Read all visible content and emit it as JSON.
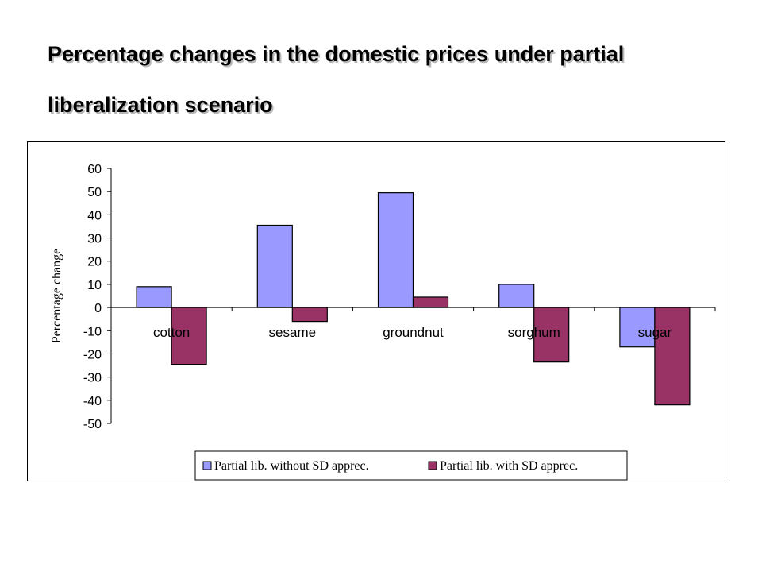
{
  "slide": {
    "title_line1": "Percentage changes in the domestic prices under partial",
    "title_line2": "liberalization scenario"
  },
  "chart_data": {
    "type": "bar",
    "title": "",
    "xlabel": "",
    "ylabel": "Percentage change",
    "ylim": [
      -50,
      60
    ],
    "yticks": [
      60,
      50,
      40,
      30,
      20,
      10,
      0,
      -10,
      -20,
      -30,
      -40,
      -50
    ],
    "grid": false,
    "legend_position": "bottom",
    "categories": [
      "cotton",
      "sesame",
      "groundnut",
      "sorghum",
      "sugar"
    ],
    "series": [
      {
        "name": "Partial lib. without SD apprec.",
        "color": "#9999ff",
        "values": [
          9,
          35.5,
          49.5,
          10,
          -17
        ]
      },
      {
        "name": "Partial lib. with SD apprec.",
        "color": "#993366",
        "values": [
          -24.5,
          -6,
          4.5,
          -23.5,
          -42
        ]
      }
    ]
  }
}
